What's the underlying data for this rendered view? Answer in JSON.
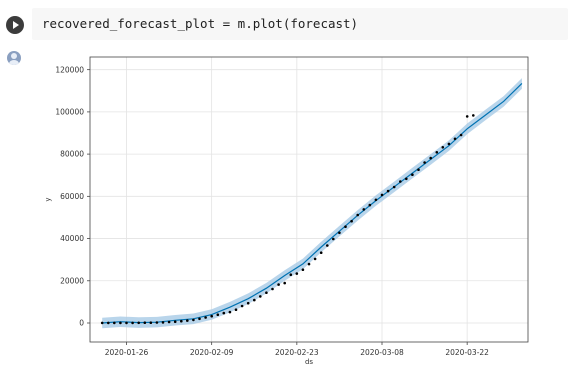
{
  "cell": {
    "code": "recovered_forecast_plot = m.plot(forecast)"
  },
  "chart_data": {
    "type": "line",
    "xlabel": "ds",
    "ylabel": "y",
    "xlim": [
      "2020-01-20",
      "2020-04-01"
    ],
    "ylim": [
      -9000,
      126000
    ],
    "grid": true,
    "x_ticks": [
      "2020-01-26",
      "2020-02-09",
      "2020-02-23",
      "2020-03-08",
      "2020-03-22"
    ],
    "y_ticks": [
      0,
      20000,
      40000,
      60000,
      80000,
      100000,
      120000
    ],
    "colors": {
      "forecast": "#0072B2",
      "band": "#a8cbe6",
      "points": "#000000"
    },
    "forecast": {
      "ds": [
        "2020-01-22",
        "2020-01-25",
        "2020-01-28",
        "2020-01-31",
        "2020-02-03",
        "2020-02-06",
        "2020-02-09",
        "2020-02-12",
        "2020-02-15",
        "2020-02-18",
        "2020-02-21",
        "2020-02-24",
        "2020-02-27",
        "2020-03-01",
        "2020-03-04",
        "2020-03-07",
        "2020-03-10",
        "2020-03-13",
        "2020-03-16",
        "2020-03-19",
        "2020-03-22",
        "2020-03-25",
        "2020-03-28",
        "2020-03-31"
      ],
      "yhat": [
        0,
        600,
        200,
        400,
        1300,
        2000,
        4000,
        7500,
        11500,
        16500,
        22500,
        28000,
        36000,
        43500,
        51000,
        58000,
        64500,
        71000,
        77500,
        84000,
        92000,
        98500,
        105000,
        113500
      ],
      "band": 2500
    },
    "observed": {
      "ds": [
        "2020-01-22",
        "2020-01-23",
        "2020-01-24",
        "2020-01-25",
        "2020-01-26",
        "2020-01-27",
        "2020-01-28",
        "2020-01-29",
        "2020-01-30",
        "2020-01-31",
        "2020-02-01",
        "2020-02-02",
        "2020-02-03",
        "2020-02-04",
        "2020-02-05",
        "2020-02-06",
        "2020-02-07",
        "2020-02-08",
        "2020-02-09",
        "2020-02-10",
        "2020-02-11",
        "2020-02-12",
        "2020-02-13",
        "2020-02-14",
        "2020-02-15",
        "2020-02-16",
        "2020-02-17",
        "2020-02-18",
        "2020-02-19",
        "2020-02-20",
        "2020-02-21",
        "2020-02-22",
        "2020-02-23",
        "2020-02-24",
        "2020-02-25",
        "2020-02-26",
        "2020-02-27",
        "2020-02-28",
        "2020-02-29",
        "2020-03-01",
        "2020-03-02",
        "2020-03-03",
        "2020-03-04",
        "2020-03-05",
        "2020-03-06",
        "2020-03-07",
        "2020-03-08",
        "2020-03-09",
        "2020-03-10",
        "2020-03-11",
        "2020-03-12",
        "2020-03-13",
        "2020-03-14",
        "2020-03-15",
        "2020-03-16",
        "2020-03-17",
        "2020-03-18",
        "2020-03-19",
        "2020-03-20",
        "2020-03-21",
        "2020-03-22",
        "2020-03-23"
      ],
      "y": [
        28,
        30,
        36,
        39,
        52,
        61,
        107,
        126,
        143,
        222,
        284,
        472,
        623,
        852,
        1124,
        1487,
        2011,
        2616,
        3244,
        3946,
        4683,
        5150,
        6295,
        8058,
        9395,
        10865,
        12583,
        14352,
        16121,
        18177,
        18890,
        22886,
        23394,
        25227,
        27905,
        30384,
        33277,
        36711,
        39782,
        42716,
        45602,
        48229,
        51171,
        53797,
        55866,
        58359,
        60694,
        62494,
        64404,
        67003,
        68324,
        70251,
        72624,
        76034,
        78088,
        80840,
        83207,
        84854,
        87256,
        89071,
        97882,
        98334
      ]
    }
  }
}
